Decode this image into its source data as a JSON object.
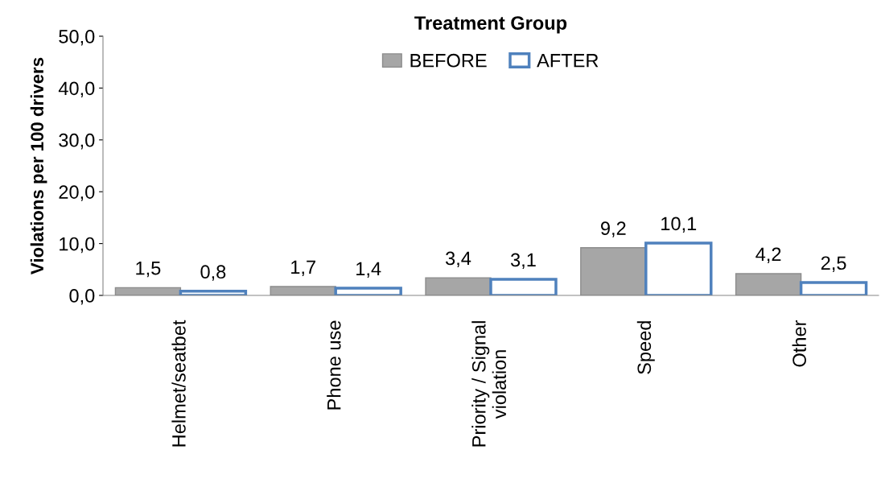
{
  "chart_data": {
    "type": "bar",
    "title": "Treatment Group",
    "ylabel": "Violations per 100 drivers",
    "categories": [
      "Helmet/seatbet",
      "Phone use",
      "Priority / Signal\nviolation",
      "Speed",
      "Other"
    ],
    "series": [
      {
        "name": "BEFORE",
        "color": "#a6a6a6",
        "values": [
          1.5,
          1.7,
          3.4,
          9.2,
          4.2
        ],
        "value_labels": [
          "1,5",
          "1,7",
          "3,4",
          "9,2",
          "4,2"
        ]
      },
      {
        "name": "AFTER",
        "color": "#4f81bd",
        "values": [
          0.8,
          1.4,
          3.1,
          10.1,
          2.5
        ],
        "value_labels": [
          "0,8",
          "1,4",
          "3,1",
          "10,1",
          "2,5"
        ]
      }
    ],
    "ylim": [
      0,
      50
    ],
    "yticks": [
      {
        "value": 0,
        "label": "0,0"
      },
      {
        "value": 10,
        "label": "10,0"
      },
      {
        "value": 20,
        "label": "20,0"
      },
      {
        "value": 30,
        "label": "30,0"
      },
      {
        "value": 40,
        "label": "40,0"
      },
      {
        "value": 50,
        "label": "50,0"
      }
    ],
    "grid": false,
    "legend": "top"
  }
}
